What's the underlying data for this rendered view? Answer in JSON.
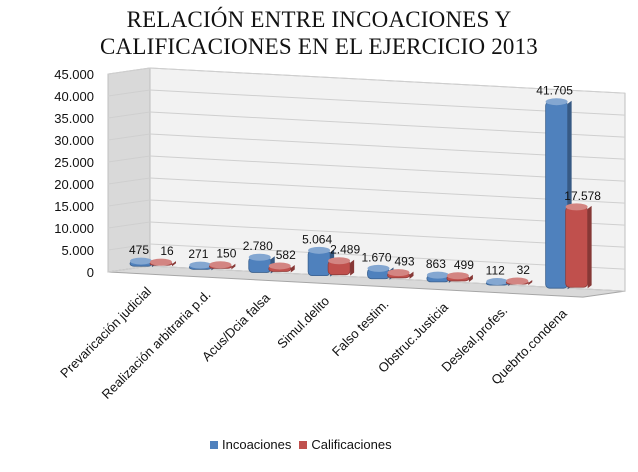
{
  "chart_data": {
    "type": "bar",
    "title_lines": [
      "RELACIÓN ENTRE INCOACIONES Y",
      "CALIFICACIONES EN EL EJERCICIO 2013"
    ],
    "categories": [
      "Prevaricación judicial",
      "Realización arbitraria p.d.",
      "Acus/Dcia falsa",
      "Simul.delito",
      "Falso testim.",
      "Obstruc.Justicia",
      "Desleal.profes.",
      "Quebrto.condena"
    ],
    "series": [
      {
        "name": "Incoaciones",
        "color": "#4f81bd",
        "values": [
          475,
          271,
          2780,
          5064,
          1670,
          863,
          112,
          41705
        ],
        "labels": [
          "475",
          "271",
          "2.780",
          "5.064",
          "1.670",
          "863",
          "112",
          "41.705"
        ]
      },
      {
        "name": "Calificaciones",
        "color": "#c0504d",
        "values": [
          16,
          150,
          582,
          2489,
          493,
          499,
          32,
          17578
        ],
        "labels": [
          "16",
          "150",
          "582",
          "2.489",
          "493",
          "499",
          "32",
          "17.578"
        ]
      }
    ],
    "y_ticks": [
      0,
      5000,
      10000,
      15000,
      20000,
      25000,
      30000,
      35000,
      40000,
      45000
    ],
    "y_tick_labels": [
      "0",
      "5.000",
      "10.000",
      "15.000",
      "20.000",
      "25.000",
      "30.000",
      "35.000",
      "40.000",
      "45.000"
    ],
    "ylim": [
      0,
      45000
    ],
    "style": "3d-clustered-column",
    "grid": true,
    "legend_position": "bottom"
  }
}
